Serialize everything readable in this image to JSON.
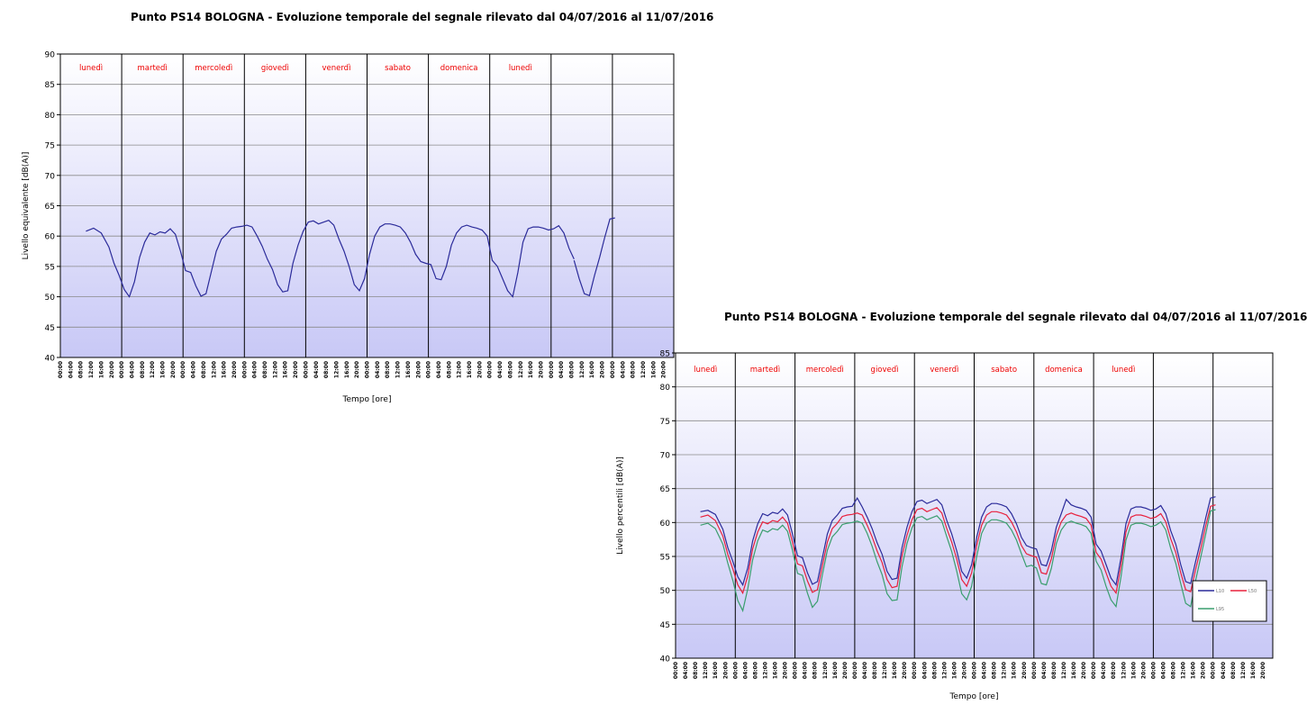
{
  "chart_data": [
    {
      "type": "line",
      "title": "Punto PS14 BOLOGNA - Evoluzione temporale del segnale rilevato dal 04/07/2016 al 11/07/2016",
      "xlabel": "Tempo [ore]",
      "ylabel": "Livello equivalente [dB(A)]",
      "ylim": [
        40,
        90
      ],
      "y_ticks": [
        40,
        45,
        50,
        55,
        60,
        65,
        70,
        75,
        80,
        85,
        90
      ],
      "days": [
        "lunedì",
        "martedì",
        "mercoledì",
        "giovedì",
        "venerdì",
        "sabato",
        "domenica",
        "lunedì",
        "",
        ""
      ],
      "hour_ticks": [
        "00:00",
        "04:00",
        "08:00",
        "12:00",
        "16:00",
        "20:00"
      ],
      "x_unit": "hours from day start",
      "xlim": [
        0,
        240
      ],
      "grid": true,
      "series": [
        {
          "color": "#2b2b9a",
          "x": [
            10,
            13,
            16,
            19,
            21,
            23,
            25,
            27,
            29,
            31,
            33,
            35,
            37,
            39,
            41,
            43,
            45,
            47,
            49,
            51,
            53,
            55,
            57,
            59,
            61,
            63,
            65,
            67,
            69,
            71,
            73,
            75,
            77,
            79,
            81,
            83,
            85,
            87,
            89,
            91,
            93,
            95,
            97,
            99,
            101,
            103,
            105,
            107,
            109,
            111,
            113,
            115,
            117,
            119,
            121,
            123,
            125,
            127,
            129,
            131,
            133,
            135,
            137,
            139,
            141,
            143,
            145,
            147,
            149,
            151,
            153,
            155,
            157,
            159,
            161,
            163,
            165,
            167,
            169,
            171,
            173,
            175,
            177,
            179,
            181,
            183,
            185,
            187,
            189,
            191,
            193,
            195,
            197,
            199,
            201
          ],
          "values": [
            60.8,
            61.3,
            60.5,
            58.2,
            55.5,
            53.5,
            51.2,
            50.0,
            52.5,
            56.5,
            59.0,
            60.5,
            60.2,
            60.7,
            60.5,
            61.2,
            60.3,
            57.5,
            54.3,
            54.0,
            51.8,
            50.1,
            50.5,
            54.0,
            57.5,
            59.5,
            60.3,
            61.3,
            61.5,
            61.6,
            61.8,
            61.5,
            60.0,
            58.3,
            56.2,
            54.5,
            52.0,
            50.8,
            51.0,
            55.5,
            58.5,
            60.8,
            62.3,
            62.5,
            62.0,
            62.3,
            62.6,
            61.8,
            59.5,
            57.5,
            55.0,
            52.0,
            51.0,
            53.0,
            57.0,
            60.0,
            61.5,
            62.0,
            62.0,
            61.8,
            61.5,
            60.5,
            59.0,
            57.0,
            55.8,
            55.5,
            55.3,
            53.0,
            52.8,
            55.0,
            58.5,
            60.5,
            61.5,
            61.8,
            61.5,
            61.3,
            61.0,
            60.0,
            56.0,
            55.0,
            53.0,
            51.0,
            50.0,
            54.0,
            59.0,
            61.2,
            61.5,
            61.5,
            61.3,
            61.0,
            61.2,
            61.7,
            60.5,
            58.0,
            56.2
          ]
        },
        {
          "color": "#2b2b9a",
          "x": [
            201,
            203,
            205,
            207,
            209,
            211,
            213,
            215,
            217
          ],
          "values": [
            56.0,
            53.0,
            50.5,
            50.2,
            53.5,
            56.5,
            59.8,
            62.8,
            63.0
          ]
        }
      ]
    },
    {
      "type": "line",
      "title": "Punto PS14 BOLOGNA - Evoluzione temporale del segnale rilevato dal 04/07/2016 al 11/07/2016",
      "xlabel": "Tempo [ore]",
      "ylabel": "Livello percentili [dB(A)]",
      "ylim": [
        40,
        85
      ],
      "y_ticks": [
        40,
        45,
        50,
        55,
        60,
        65,
        70,
        75,
        80,
        85
      ],
      "days": [
        "lunedì",
        "martedì",
        "mercoledì",
        "giovedì",
        "venerdì",
        "sabato",
        "domenica",
        "lunedì",
        "",
        ""
      ],
      "hour_ticks": [
        "00:00",
        "04:00",
        "08:00",
        "12:00",
        "16:00",
        "20:00"
      ],
      "x_unit": "hours from day start",
      "xlim": [
        0,
        240
      ],
      "grid": true,
      "legend": "right",
      "series": [
        {
          "name": "L10",
          "color": "#2b2b9a",
          "x": [
            10,
            13,
            16,
            19,
            21,
            23,
            25,
            27,
            29,
            31,
            33,
            35,
            37,
            39,
            41,
            43,
            45,
            47,
            49,
            51,
            53,
            55,
            57,
            59,
            61,
            63,
            65,
            67,
            69,
            71,
            73,
            75,
            77,
            79,
            81,
            83,
            85,
            87,
            89,
            91,
            93,
            95,
            97,
            99,
            101,
            103,
            105,
            107,
            109,
            111,
            113,
            115,
            117,
            119,
            121,
            123,
            125,
            127,
            129,
            131,
            133,
            135,
            137,
            139,
            141,
            143,
            145,
            147,
            149,
            151,
            153,
            155,
            157,
            159,
            161,
            163,
            165,
            167,
            169,
            171,
            173,
            175,
            177,
            179,
            181,
            183,
            185,
            187,
            189,
            191,
            193,
            195,
            197,
            199,
            201,
            203,
            205,
            207,
            209,
            211,
            213,
            215,
            217
          ],
          "values": [
            61.6,
            61.8,
            61.2,
            59.0,
            56.3,
            54.3,
            52.0,
            50.8,
            53.3,
            57.3,
            59.8,
            61.3,
            61.0,
            61.5,
            61.3,
            62.0,
            61.1,
            58.3,
            55.1,
            54.8,
            52.6,
            50.9,
            51.3,
            54.8,
            58.3,
            60.3,
            61.1,
            62.1,
            62.3,
            62.4,
            63.6,
            62.3,
            60.8,
            59.1,
            57.0,
            55.3,
            52.8,
            51.6,
            51.8,
            56.3,
            59.3,
            61.6,
            63.1,
            63.3,
            62.8,
            63.1,
            63.4,
            62.6,
            60.3,
            58.3,
            55.8,
            52.8,
            51.8,
            53.8,
            57.8,
            60.8,
            62.3,
            62.8,
            62.8,
            62.6,
            62.3,
            61.3,
            59.8,
            57.8,
            56.6,
            56.3,
            56.1,
            53.8,
            53.6,
            55.8,
            59.3,
            61.3,
            63.4,
            62.6,
            62.3,
            62.1,
            61.8,
            60.8,
            56.8,
            55.8,
            53.8,
            51.8,
            50.8,
            54.8,
            59.8,
            62.0,
            62.3,
            62.3,
            62.1,
            61.8,
            62.0,
            62.5,
            61.3,
            58.8,
            56.8,
            53.8,
            51.3,
            51.0,
            54.3,
            57.3,
            60.6,
            63.6,
            63.8
          ]
        },
        {
          "name": "L50",
          "color": "#e8203c",
          "x": [
            10,
            13,
            16,
            19,
            21,
            23,
            25,
            27,
            29,
            31,
            33,
            35,
            37,
            39,
            41,
            43,
            45,
            47,
            49,
            51,
            53,
            55,
            57,
            59,
            61,
            63,
            65,
            67,
            69,
            71,
            73,
            75,
            77,
            79,
            81,
            83,
            85,
            87,
            89,
            91,
            93,
            95,
            97,
            99,
            101,
            103,
            105,
            107,
            109,
            111,
            113,
            115,
            117,
            119,
            121,
            123,
            125,
            127,
            129,
            131,
            133,
            135,
            137,
            139,
            141,
            143,
            145,
            147,
            149,
            151,
            153,
            155,
            157,
            159,
            161,
            163,
            165,
            167,
            169,
            171,
            173,
            175,
            177,
            179,
            181,
            183,
            185,
            187,
            189,
            191,
            193,
            195,
            197,
            199,
            201,
            203,
            205,
            207,
            209,
            211,
            213,
            215,
            217
          ],
          "values": [
            60.8,
            61.1,
            60.3,
            58.0,
            55.3,
            53.2,
            50.8,
            49.6,
            52.1,
            56.1,
            58.6,
            60.1,
            59.8,
            60.3,
            60.1,
            60.8,
            59.9,
            57.1,
            53.9,
            53.6,
            51.4,
            49.7,
            50.1,
            53.6,
            57.1,
            59.1,
            59.9,
            60.9,
            61.1,
            61.2,
            61.4,
            61.1,
            59.6,
            57.9,
            55.8,
            54.1,
            51.6,
            50.4,
            50.6,
            55.1,
            58.1,
            60.4,
            61.9,
            62.1,
            61.6,
            61.9,
            62.2,
            61.4,
            59.1,
            57.1,
            54.6,
            51.6,
            50.6,
            52.6,
            56.6,
            59.6,
            61.1,
            61.6,
            61.6,
            61.4,
            61.1,
            60.1,
            58.6,
            56.6,
            55.4,
            55.1,
            54.9,
            52.6,
            52.4,
            54.6,
            58.1,
            60.1,
            61.1,
            61.4,
            61.1,
            60.9,
            60.6,
            59.6,
            55.6,
            54.6,
            52.6,
            50.6,
            49.6,
            53.6,
            58.6,
            60.8,
            61.1,
            61.1,
            60.9,
            60.6,
            60.8,
            61.3,
            60.1,
            57.6,
            55.6,
            52.6,
            50.1,
            49.8,
            53.1,
            56.1,
            59.4,
            62.4,
            62.6
          ]
        },
        {
          "name": "L95",
          "color": "#3a9e6e",
          "x": [
            10,
            13,
            16,
            19,
            21,
            23,
            25,
            27,
            29,
            31,
            33,
            35,
            37,
            39,
            41,
            43,
            45,
            47,
            49,
            51,
            53,
            55,
            57,
            59,
            61,
            63,
            65,
            67,
            69,
            71,
            73,
            75,
            77,
            79,
            81,
            83,
            85,
            87,
            89,
            91,
            93,
            95,
            97,
            99,
            101,
            103,
            105,
            107,
            109,
            111,
            113,
            115,
            117,
            119,
            121,
            123,
            125,
            127,
            129,
            131,
            133,
            135,
            137,
            139,
            141,
            143,
            145,
            147,
            149,
            151,
            153,
            155,
            157,
            159,
            161,
            163,
            165,
            167,
            169,
            171,
            173,
            175,
            177,
            179,
            181,
            183,
            185,
            187,
            189,
            191,
            193,
            195,
            197,
            199,
            201,
            203,
            205,
            207,
            209,
            211,
            213,
            215,
            217
          ],
          "values": [
            59.6,
            59.9,
            59.1,
            56.8,
            54.0,
            51.5,
            48.5,
            47.0,
            50.2,
            54.5,
            57.3,
            58.9,
            58.6,
            59.1,
            58.9,
            59.6,
            58.7,
            55.9,
            52.5,
            52.2,
            49.6,
            47.5,
            48.4,
            52.3,
            55.9,
            57.9,
            58.7,
            59.7,
            59.9,
            60.0,
            60.2,
            59.9,
            58.4,
            56.5,
            54.2,
            52.3,
            49.5,
            48.5,
            48.6,
            53.5,
            56.9,
            59.2,
            60.7,
            60.9,
            60.4,
            60.7,
            61.0,
            60.2,
            57.9,
            55.7,
            52.8,
            49.5,
            48.6,
            50.6,
            55.0,
            58.4,
            59.9,
            60.4,
            60.4,
            60.2,
            59.9,
            58.9,
            57.4,
            55.4,
            53.5,
            53.7,
            53.3,
            51.0,
            50.8,
            53.2,
            56.9,
            58.9,
            59.9,
            60.2,
            59.9,
            59.7,
            59.4,
            58.4,
            54.3,
            53.0,
            50.6,
            48.6,
            47.6,
            52.0,
            57.4,
            59.6,
            59.9,
            59.9,
            59.7,
            59.4,
            59.6,
            60.1,
            58.9,
            56.2,
            54.0,
            51.0,
            48.1,
            47.6,
            51.5,
            54.8,
            58.2,
            61.7,
            61.9
          ]
        }
      ]
    }
  ]
}
